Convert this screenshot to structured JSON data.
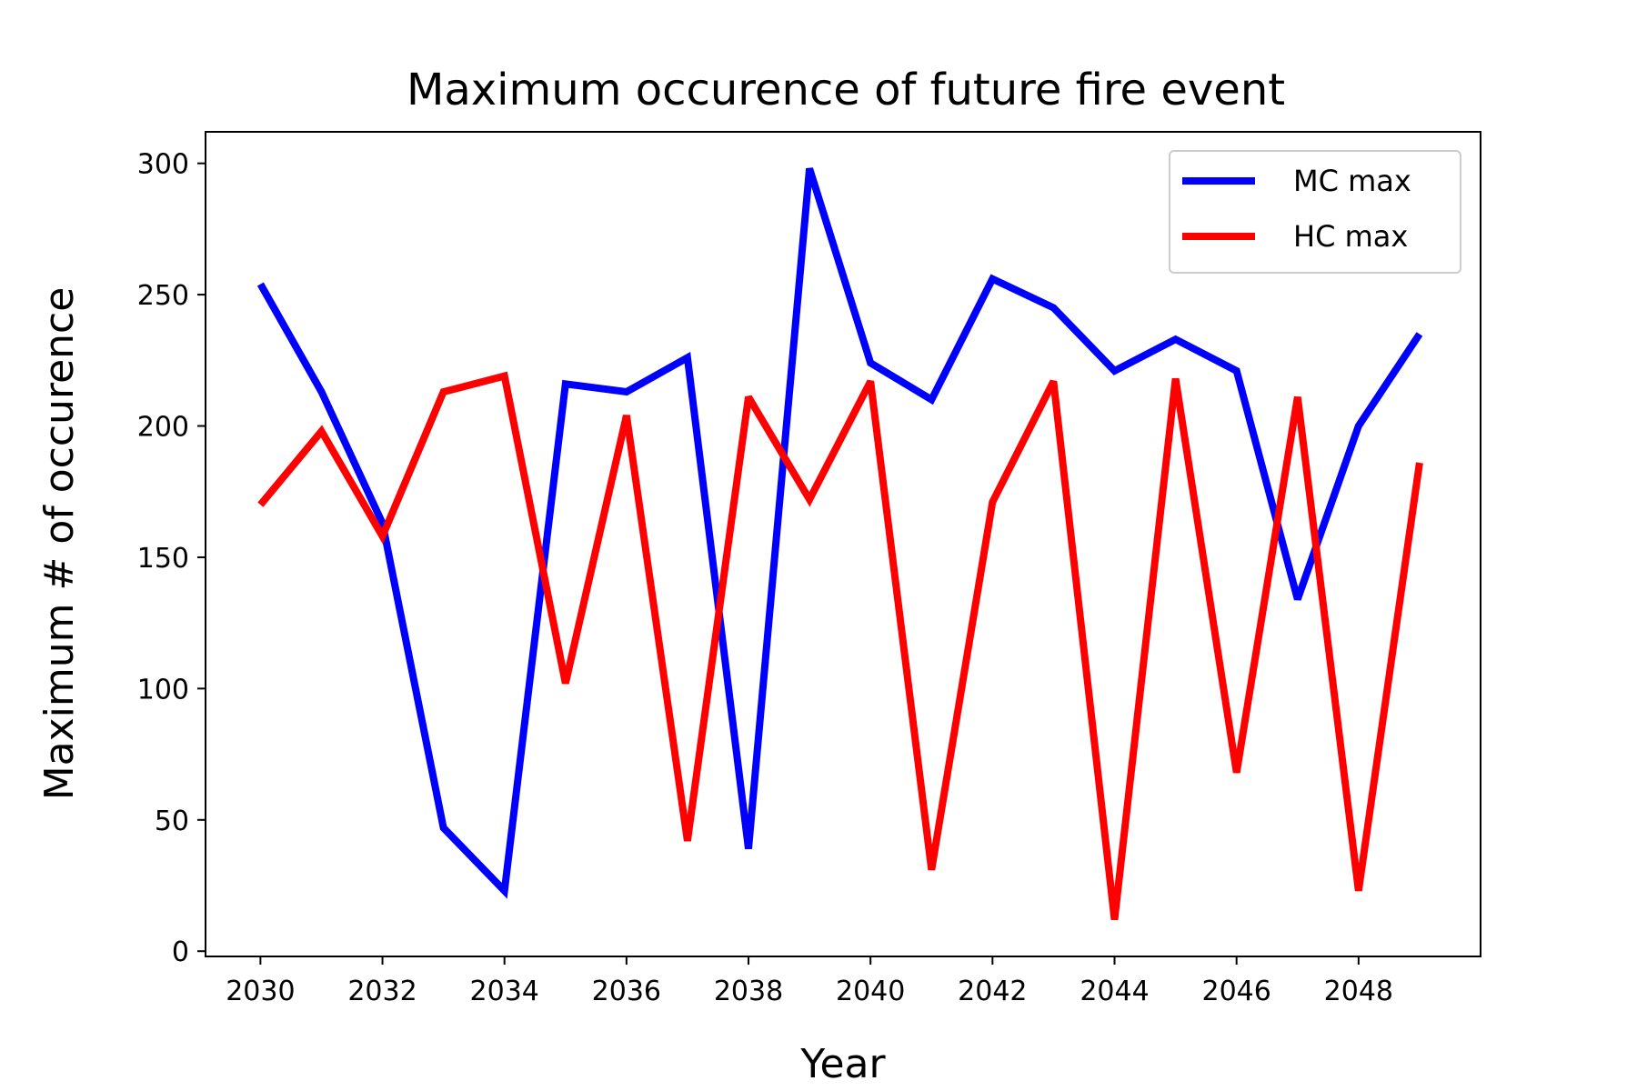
{
  "chart_data": {
    "type": "line",
    "title": "Maximum occurence of future fire event",
    "xlabel": "Year",
    "ylabel": "Maximum # of occurence",
    "x": [
      2030,
      2031,
      2032,
      2033,
      2034,
      2035,
      2036,
      2037,
      2038,
      2039,
      2040,
      2041,
      2042,
      2043,
      2044,
      2045,
      2046,
      2047,
      2048,
      2049
    ],
    "x_ticks": [
      2030,
      2032,
      2034,
      2036,
      2038,
      2040,
      2042,
      2044,
      2046,
      2048
    ],
    "y_ticks": [
      0,
      50,
      100,
      150,
      200,
      250,
      300
    ],
    "xlim": [
      2029.1,
      2050
    ],
    "ylim": [
      -2,
      312
    ],
    "legend_position": "top-right",
    "grid": false,
    "series": [
      {
        "name": "MC max",
        "color": "#0000ff",
        "values": [
          254,
          213,
          163,
          47,
          23,
          216,
          213,
          226,
          39,
          298,
          224,
          210,
          256,
          245,
          221,
          233,
          221,
          134,
          200,
          235
        ]
      },
      {
        "name": "HC max",
        "color": "#ff0000",
        "values": [
          170,
          198,
          158,
          213,
          219,
          102,
          204,
          42,
          211,
          172,
          217,
          31,
          171,
          217,
          12,
          218,
          68,
          211,
          23,
          186
        ]
      }
    ]
  }
}
